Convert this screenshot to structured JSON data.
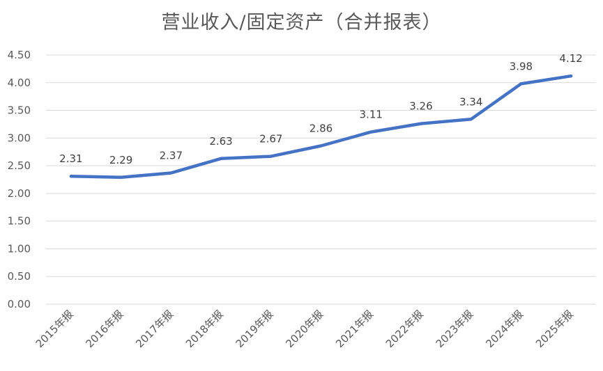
{
  "chart_data": {
    "type": "line",
    "title": "营业收入/固定资产（合并报表）",
    "xlabel": "",
    "ylabel": "",
    "categories": [
      "2015年报",
      "2016年报",
      "2017年报",
      "2018年报",
      "2019年报",
      "2020年报",
      "2021年报",
      "2022年报",
      "2023年报",
      "2024年报",
      "2025年报"
    ],
    "series": [
      {
        "values": [
          2.31,
          2.29,
          2.37,
          2.63,
          2.67,
          2.86,
          3.11,
          3.26,
          3.34,
          3.98,
          4.12
        ]
      }
    ],
    "data_labels": [
      "2.31",
      "2.29",
      "2.37",
      "2.63",
      "2.67",
      "2.86",
      "3.11",
      "3.26",
      "3.34",
      "3.98",
      "4.12"
    ],
    "y_ticks": [
      "0.00",
      "0.50",
      "1.00",
      "1.50",
      "2.00",
      "2.50",
      "3.00",
      "3.50",
      "4.00",
      "4.50"
    ],
    "ylim": [
      0,
      4.5
    ],
    "grid": true,
    "legend": "none",
    "line_color": "#4472C4",
    "grid_color": "#D9D9D9"
  }
}
